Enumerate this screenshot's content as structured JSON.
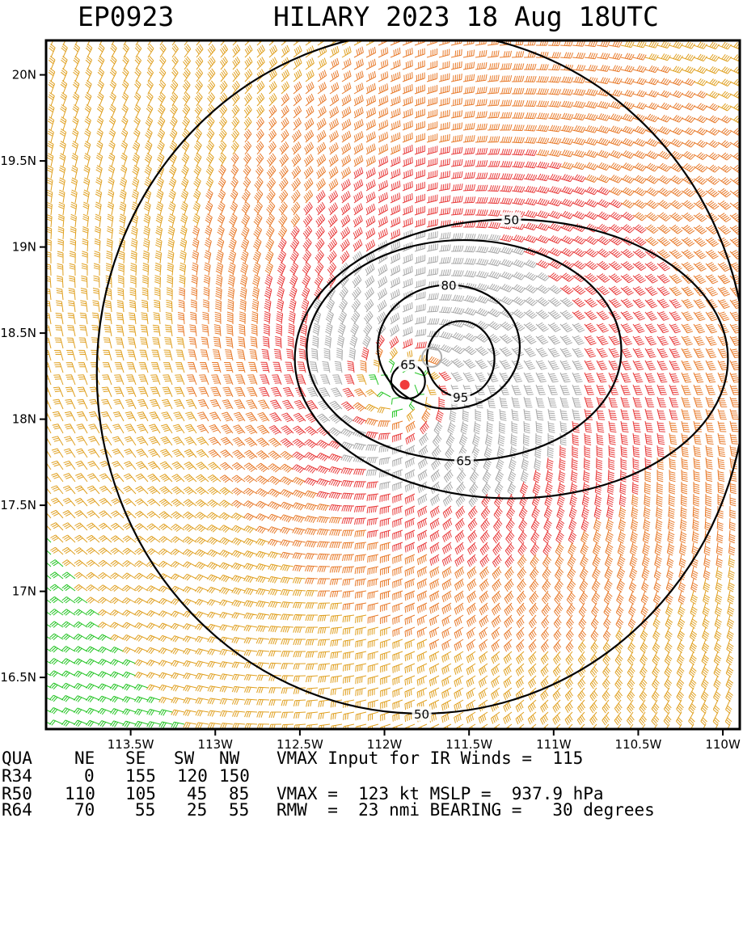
{
  "header": {
    "storm_id": "EP0923",
    "storm_title": "HILARY 2023 18 Aug 18UTC"
  },
  "chart_data": {
    "type": "wind-field",
    "axes": {
      "xlim": [
        -114.0,
        -109.9
      ],
      "ylim": [
        16.2,
        20.2
      ],
      "x_ticks": [
        {
          "value": -113.5,
          "label": "113.5W"
        },
        {
          "value": -113.0,
          "label": "113W"
        },
        {
          "value": -112.5,
          "label": "112.5W"
        },
        {
          "value": -112.0,
          "label": "112W"
        },
        {
          "value": -111.5,
          "label": "111.5W"
        },
        {
          "value": -111.0,
          "label": "111W"
        },
        {
          "value": -110.5,
          "label": "110.5W"
        },
        {
          "value": -110.0,
          "label": "110W"
        }
      ],
      "y_ticks": [
        {
          "value": 20.0,
          "label": "20N"
        },
        {
          "value": 19.5,
          "label": "19.5N"
        },
        {
          "value": 19.0,
          "label": "19N"
        },
        {
          "value": 18.5,
          "label": "18.5N"
        },
        {
          "value": 18.0,
          "label": "18N"
        },
        {
          "value": 17.5,
          "label": "17.5N"
        },
        {
          "value": 17.0,
          "label": "17N"
        },
        {
          "value": 16.5,
          "label": "16.5N"
        }
      ]
    },
    "center": {
      "lon": -111.88,
      "lat": 18.2
    },
    "rmw_ring_center": {
      "lon": -111.72,
      "lat": 18.36
    },
    "contours": [
      {
        "level": 50,
        "label": "50",
        "rx_deg": 1.28,
        "ry_deg": 0.81,
        "cx": -111.25,
        "cy": 18.35
      },
      {
        "level": 65,
        "label": "65",
        "rx_deg": 0.93,
        "ry_deg": 0.64,
        "cx": -111.53,
        "cy": 18.4
      },
      {
        "level": 80,
        "label": "80",
        "rx_deg": 0.42,
        "ry_deg": 0.36,
        "cx": -111.62,
        "cy": 18.42
      },
      {
        "level": 95,
        "label": "95",
        "rx_deg": 0.2,
        "ry_deg": 0.22,
        "cx": -111.55,
        "cy": 18.35
      },
      {
        "level": 65,
        "label": "65",
        "rx_deg": 0.1,
        "ry_deg": 0.1,
        "cx": -111.86,
        "cy": 18.22
      },
      {
        "level": 50,
        "label": "50",
        "rx_deg": 1.92,
        "ry_deg": 1.98,
        "cx": -111.78,
        "cy": 18.27
      }
    ],
    "wind_bands": [
      {
        "max_kt": 34,
        "color": "#22c422"
      },
      {
        "max_kt": 50,
        "color": "#e0a020"
      },
      {
        "max_kt": 64,
        "color": "#e87a2a"
      },
      {
        "max_kt": 83,
        "color": "#e83a3a"
      },
      {
        "max_kt": 999,
        "color": "#a8a8a8"
      }
    ],
    "vmax_kt": 123,
    "rmw_nmi": 23
  },
  "info": {
    "quadrant_header": [
      "QUA",
      "NE",
      "SE",
      "SW",
      "NW"
    ],
    "rows": [
      {
        "label": "R34",
        "values": [
          "0",
          "155",
          "120",
          "150"
        ]
      },
      {
        "label": "R50",
        "values": [
          "110",
          "105",
          "45",
          "85"
        ]
      },
      {
        "label": "R64",
        "values": [
          "70",
          "55",
          "25",
          "55"
        ]
      }
    ],
    "right_lines": [
      "VMAX Input for IR Winds =  115",
      "",
      "VMAX =  123 kt MSLP =  937.9 hPa",
      "RMW  =  23 nmi BEARING =   30 degrees"
    ]
  }
}
